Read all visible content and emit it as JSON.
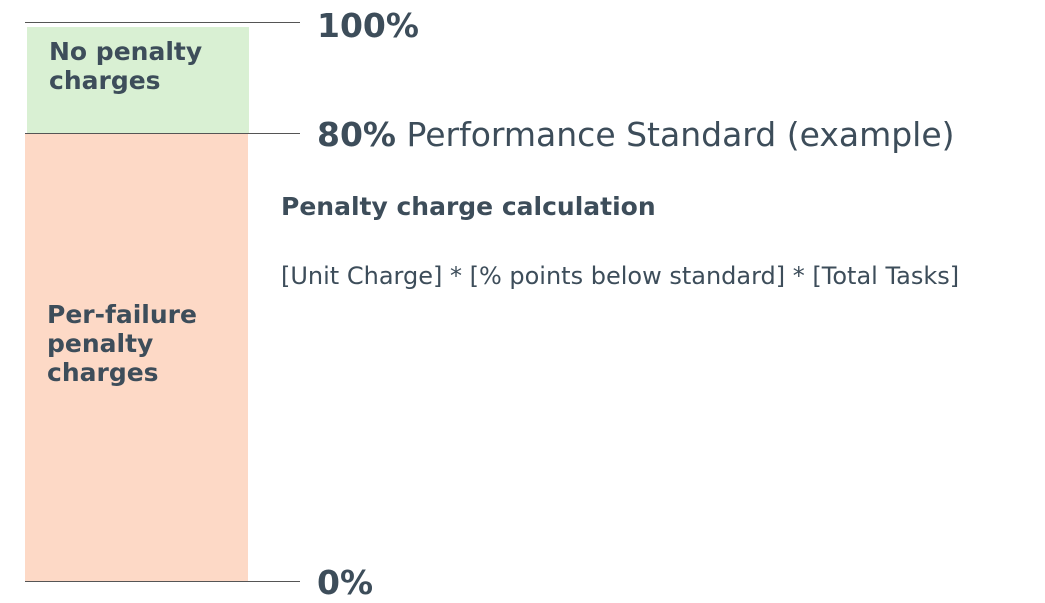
{
  "levels": [
    {
      "label": "100%"
    },
    {
      "label": "80%",
      "note": "Performance Standard (example)"
    },
    {
      "label": "0%"
    }
  ],
  "zones": [
    {
      "label": "No penalty charges"
    },
    {
      "label": "Per-failure penalty charges"
    }
  ],
  "calculation": {
    "title": "Penalty charge calculation",
    "formula": "[Unit Charge] * [% points below standard] * [Total Tasks]"
  }
}
